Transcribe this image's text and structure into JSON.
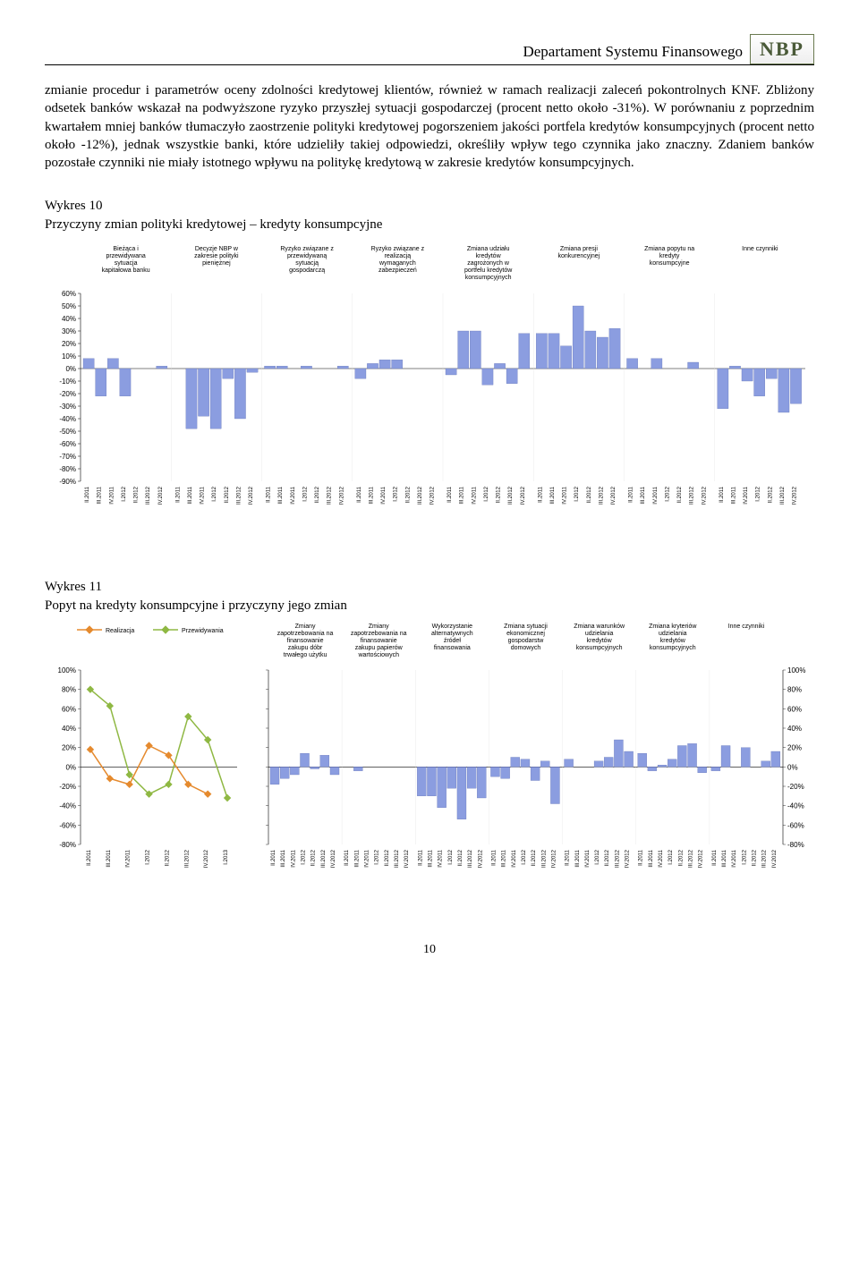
{
  "header": {
    "department": "Departament Systemu Finansowego",
    "logo": "NBP"
  },
  "paragraph": "zmianie procedur i parametrów oceny zdolności kredytowej klientów, również w ramach realizacji zaleceń pokontrolnych KNF. Zbliżony odsetek banków wskazał na podwyższone ryzyko przyszłej sytuacji gospodarczej (procent netto około -31%). W porównaniu z poprzednim kwartałem mniej banków tłumaczyło zaostrzenie polityki kredytowej pogorszeniem jakości portfela kredytów konsumpcyjnych (procent netto około -12%), jednak wszystkie banki, które udzieliły takiej odpowiedzi, określiły wpływ tego czynnika jako znaczny. Zdaniem banków pozostałe czynniki nie miały istotnego wpływu na politykę kredytową w zakresie kredytów konsumpcyjnych.",
  "chart10": {
    "type": "bar",
    "title_a": "Wykres 10",
    "title_b": "Przyczyny zmian polityki kredytowej – kredyty konsumpcyjne",
    "periods": [
      "II.2011",
      "III.2011",
      "IV.2011",
      "I.2012",
      "II.2012",
      "III.2012",
      "IV.2012"
    ],
    "ylim": [
      -90,
      60
    ],
    "ytick_step": 10,
    "bar_color": "#8b9de0",
    "grid_color": "#000000",
    "label_fontsize": 7,
    "axis_fontsize": 8,
    "groups": [
      {
        "label": "Bieżąca i przewidywana sytuacja kapitałowa banku",
        "values": [
          8,
          -22,
          8,
          -22,
          0,
          0,
          2
        ]
      },
      {
        "label": "Decyzje NBP w zakresie polityki pieniężnej",
        "values": [
          0,
          -48,
          -38,
          -48,
          -8,
          -40,
          -3
        ]
      },
      {
        "label": "Ryzyko związane z przewidywaną sytuacją gospodarczą",
        "values": [
          2,
          2,
          0,
          2,
          0,
          0,
          2
        ]
      },
      {
        "label": "Ryzyko związane z realizacją wymaganych zabezpieczeń",
        "values": [
          -8,
          4,
          7,
          7,
          0,
          0,
          0
        ]
      },
      {
        "label": "Zmiana udziału kredytów zagrożonych w portfelu kredytów konsumpcyjnych",
        "values": [
          -5,
          30,
          30,
          -13,
          4,
          -12,
          28
        ]
      },
      {
        "label": "Zmiana presji konkurencyjnej",
        "values": [
          28,
          28,
          18,
          50,
          30,
          25,
          32
        ]
      },
      {
        "label": "Zmiana popytu na kredyty konsumpcyjne",
        "values": [
          8,
          0,
          8,
          0,
          0,
          5,
          0
        ]
      },
      {
        "label": "Inne czynniki",
        "values": [
          -32,
          2,
          -10,
          -22,
          -8,
          -35,
          -28
        ]
      }
    ]
  },
  "chart11": {
    "type": "bar+line",
    "title_a": "Wykres 11",
    "title_b": "Popyt na kredyty konsumpcyjne i przyczyny jego zmian",
    "periods": [
      "II.2011",
      "III.2011",
      "IV.2011",
      "I.2012",
      "II.2012",
      "III.2012",
      "IV.2012"
    ],
    "line_periods": [
      "II.2011",
      "III.2011",
      "IV.2011",
      "I.2012",
      "II.2012",
      "III.2012",
      "IV.2012",
      "I.2013"
    ],
    "ylim": [
      -80,
      100
    ],
    "ytick_step": 20,
    "bar_color": "#8b9de0",
    "grid_color": "#000000",
    "label_fontsize": 7,
    "axis_fontsize": 8,
    "legend": {
      "realizacja": {
        "label": "Realizacja",
        "color": "#e58a2e"
      },
      "przewidywania": {
        "label": "Przewidywania",
        "color": "#8fb843"
      }
    },
    "line_realizacja": [
      18,
      -12,
      -18,
      22,
      12,
      -18,
      -28
    ],
    "line_przewidywania": [
      80,
      63,
      -8,
      -28,
      -18,
      52,
      28,
      -32
    ],
    "groups": [
      {
        "label": "Zmiany zapotrzebowania na finansowanie zakupu dóbr trwałego użytku",
        "values": [
          -18,
          -12,
          -8,
          14,
          -2,
          12,
          -8
        ]
      },
      {
        "label": "Zmiany zapotrzebowania na finansowanie zakupu papierów wartościowych",
        "values": [
          0,
          -4,
          0,
          0,
          0,
          0,
          0
        ]
      },
      {
        "label": "Wykorzystanie alternatywnych źródeł finansowania",
        "values": [
          -30,
          -30,
          -42,
          -22,
          -54,
          -22,
          -32
        ]
      },
      {
        "label": "Zmiana sytuacji ekonomicznej gospodarstw domowych",
        "values": [
          -10,
          -12,
          10,
          8,
          -14,
          6,
          -38
        ]
      },
      {
        "label": "Zmiana warunków udzielania kredytów konsumpcyjnych",
        "values": [
          8,
          0,
          0,
          6,
          10,
          28,
          16
        ]
      },
      {
        "label": "Zmiana kryteriów udzielania kredytów konsumpcyjnych",
        "values": [
          14,
          -4,
          2,
          8,
          22,
          24,
          -6
        ]
      },
      {
        "label": "Inne czynniki",
        "values": [
          -4,
          22,
          0,
          20,
          0,
          6,
          16
        ]
      }
    ]
  },
  "page_number": "10"
}
